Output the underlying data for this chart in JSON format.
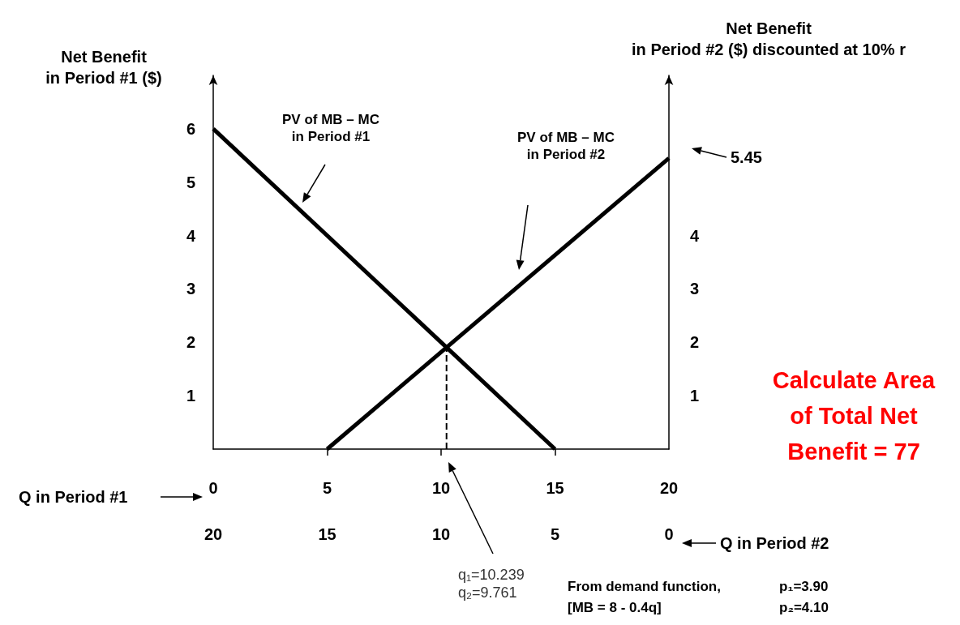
{
  "chart_data": {
    "type": "line",
    "xlabel": "Q in Period #1",
    "x2label": "Q in Period #2",
    "ylabel": "Net Benefit\nin Period #1 ($)",
    "y2label": "Net Benefit\nin Period #2 ($) discounted at 10% r",
    "xlim": [
      0,
      20
    ],
    "xticks": [
      0,
      5,
      10,
      15,
      20
    ],
    "x2lim": [
      20,
      0
    ],
    "x2ticks": [
      20,
      15,
      10,
      5,
      0
    ],
    "ylim": [
      0,
      7
    ],
    "yticks": [
      1,
      2,
      3,
      4,
      5,
      6
    ],
    "y2lim": [
      0,
      7
    ],
    "y2ticks": [
      1,
      2,
      3,
      4
    ],
    "grid": false,
    "marker": "none",
    "series": [
      {
        "color": "#000000",
        "x": [
          0,
          15
        ],
        "values": [
          6,
          0
        ],
        "line_style": "solid"
      },
      {
        "color": "#000000",
        "x": [
          5,
          20
        ],
        "values": [
          0,
          5.45
        ],
        "line_style": "solid"
      },
      {
        "color": "#000000",
        "x": [
          10.239,
          10.239
        ],
        "values": [
          0,
          1.9
        ],
        "line_style": "dashed"
      }
    ],
    "annotations": [
      "PV of MB – MC\nin Period #1",
      "PV of MB – MC\nin Period #2",
      "5.45",
      "q₁=10.239\nq₂=9.761",
      "Calculate Area\nof Total Net\nBenefit = 77",
      "From demand function,\n[MB = 8 - 0.4q]",
      "p₁=3.90\np₂=4.10"
    ]
  }
}
